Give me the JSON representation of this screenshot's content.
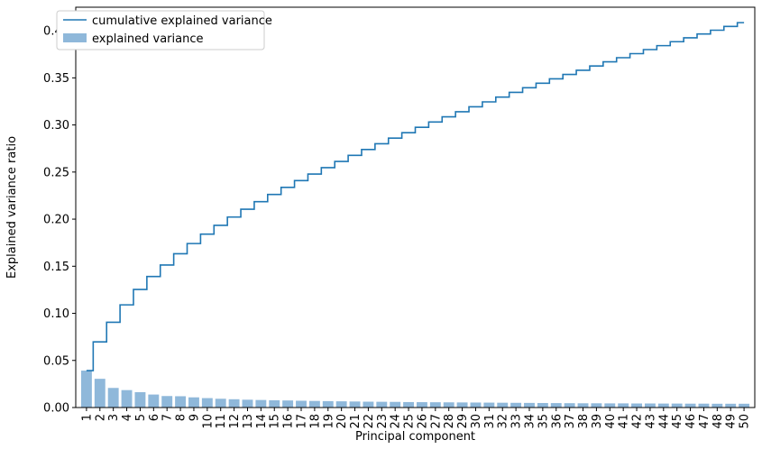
{
  "chart_data": {
    "type": "bar",
    "xlabel": "Principal component",
    "ylabel": "Explained variance ratio",
    "ylim": [
      0,
      0.425
    ],
    "yticks": [
      "0.00",
      "0.05",
      "0.10",
      "0.15",
      "0.20",
      "0.25",
      "0.30",
      "0.35",
      "0.40"
    ],
    "categories": [
      "1",
      "2",
      "3",
      "4",
      "5",
      "6",
      "7",
      "8",
      "9",
      "10",
      "11",
      "12",
      "13",
      "14",
      "15",
      "16",
      "17",
      "18",
      "19",
      "20",
      "21",
      "22",
      "23",
      "24",
      "25",
      "26",
      "27",
      "28",
      "29",
      "30",
      "31",
      "32",
      "33",
      "34",
      "35",
      "36",
      "37",
      "38",
      "39",
      "40",
      "41",
      "42",
      "43",
      "44",
      "45",
      "46",
      "47",
      "48",
      "49",
      "50"
    ],
    "series": [
      {
        "name": "explained variance",
        "kind": "bar",
        "color": "#8fb8da",
        "values": [
          0.0392,
          0.0305,
          0.0208,
          0.0185,
          0.0163,
          0.0138,
          0.0122,
          0.012,
          0.0108,
          0.01,
          0.0093,
          0.0088,
          0.0083,
          0.008,
          0.0077,
          0.0075,
          0.0072,
          0.007,
          0.0068,
          0.0066,
          0.0064,
          0.0062,
          0.0061,
          0.006,
          0.0058,
          0.0057,
          0.0056,
          0.0055,
          0.0054,
          0.0053,
          0.0052,
          0.0051,
          0.005,
          0.0049,
          0.0048,
          0.0047,
          0.0046,
          0.0045,
          0.0045,
          0.0044,
          0.0044,
          0.0043,
          0.0043,
          0.0042,
          0.0042,
          0.0041,
          0.0041,
          0.004,
          0.004,
          0.004
        ]
      },
      {
        "name": "cumulative explained variance",
        "kind": "step",
        "color": "#1f77b4",
        "values": [
          0.0392,
          0.0697,
          0.0905,
          0.109,
          0.1253,
          0.1391,
          0.1513,
          0.1633,
          0.1741,
          0.1841,
          0.1934,
          0.2022,
          0.2105,
          0.2185,
          0.2262,
          0.2337,
          0.2409,
          0.2479,
          0.2547,
          0.2613,
          0.2677,
          0.2739,
          0.28,
          0.286,
          0.2918,
          0.2975,
          0.3031,
          0.3086,
          0.314,
          0.3193,
          0.3245,
          0.3296,
          0.3346,
          0.3395,
          0.3443,
          0.349,
          0.3536,
          0.3581,
          0.3626,
          0.367,
          0.3714,
          0.3757,
          0.38,
          0.3842,
          0.3884,
          0.3925,
          0.3966,
          0.4006,
          0.4046,
          0.4086
        ]
      }
    ],
    "legend_position": "top-left",
    "grid": false
  }
}
